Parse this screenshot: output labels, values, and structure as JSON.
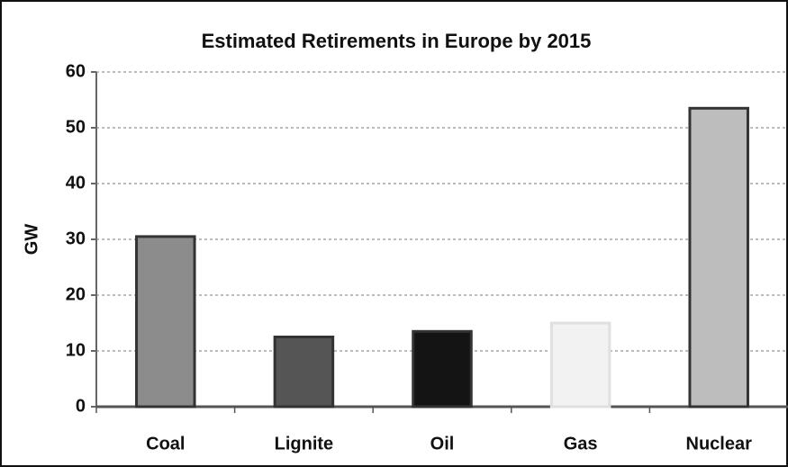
{
  "chart_data": {
    "type": "bar",
    "title": "Estimated Retirements in Europe by 2015",
    "ylabel": "GW",
    "categories": [
      "Coal",
      "Lignite",
      "Oil",
      "Gas",
      "Nuclear"
    ],
    "values": [
      30.5,
      12.5,
      13.5,
      15,
      53.5
    ],
    "colors": [
      "#8c8c8c",
      "#555555",
      "#141414",
      "#f2f2f2",
      "#bdbdbd"
    ],
    "ylim": [
      0,
      60
    ],
    "yticks": [
      0,
      10,
      20,
      30,
      40,
      50,
      60
    ],
    "grid": true
  }
}
